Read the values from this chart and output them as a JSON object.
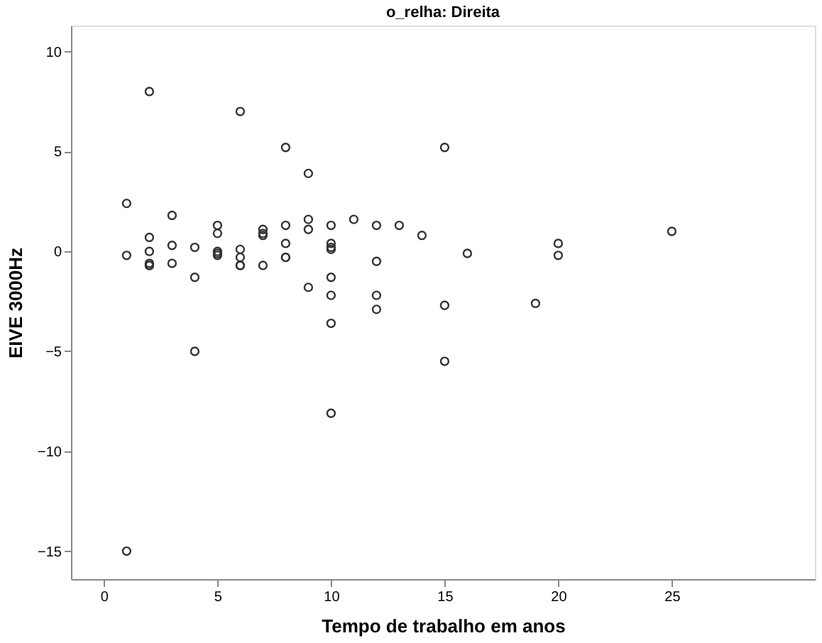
{
  "chart_data": {
    "type": "scatter",
    "title": "o_relha: Direita",
    "xlabel": "Tempo de trabalho em anos",
    "ylabel": "EIVE 3000Hz",
    "x": [
      1,
      1,
      1,
      2,
      2,
      2,
      2,
      2,
      2,
      3,
      3,
      3,
      4,
      4,
      4,
      5,
      5,
      5,
      5,
      5,
      6,
      6,
      6,
      6,
      6,
      7,
      7,
      7,
      7,
      8,
      8,
      8,
      8,
      8,
      9,
      9,
      9,
      9,
      10,
      10,
      10,
      10,
      10,
      10,
      10,
      10,
      11,
      12,
      12,
      12,
      12,
      13,
      14,
      15,
      15,
      15,
      16,
      19,
      20,
      20,
      25
    ],
    "series": [
      {
        "color": "#333333",
        "values": [
          2.4,
          -0.2,
          -15,
          8.0,
          0.7,
          0.0,
          -0.6,
          -0.7,
          -0.7,
          1.8,
          0.3,
          -0.6,
          0.2,
          -1.3,
          -5.0,
          1.3,
          0.9,
          0.0,
          -0.1,
          -0.2,
          7.0,
          0.1,
          -0.3,
          -0.7,
          -0.7,
          1.1,
          0.9,
          0.8,
          -0.7,
          5.2,
          1.3,
          0.4,
          -0.3,
          -0.3,
          3.9,
          1.6,
          1.1,
          -1.8,
          1.3,
          0.4,
          0.2,
          0.1,
          -1.3,
          -2.2,
          -3.6,
          -8.1,
          1.6,
          1.3,
          -0.5,
          -2.2,
          -2.9,
          1.3,
          0.8,
          5.2,
          -2.7,
          -5.5,
          -0.1,
          -2.6,
          0.4,
          -0.2,
          1.0
        ]
      }
    ],
    "xlim": [
      -1.45,
      31.3
    ],
    "ylim": [
      -16.4,
      11.3
    ],
    "xticks": [
      0,
      5,
      10,
      15,
      20,
      25
    ],
    "yticks": [
      -15,
      -10,
      -5,
      0,
      5,
      10
    ],
    "marker": "circle",
    "grid": false,
    "legend": false
  }
}
